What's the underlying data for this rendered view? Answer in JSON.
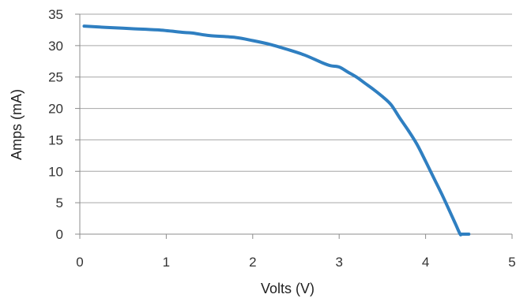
{
  "chart_data": {
    "type": "line",
    "title": "",
    "xlabel": "Volts (V)",
    "ylabel": "Amps (mA)",
    "xlim": [
      0,
      5
    ],
    "ylim": [
      0,
      35
    ],
    "x_ticks": [
      "0",
      "1",
      "2",
      "3",
      "4",
      "5"
    ],
    "y_ticks": [
      "0",
      "5",
      "10",
      "15",
      "20",
      "25",
      "30",
      "35"
    ],
    "grid": "horizontal",
    "legend": "none",
    "colors": {
      "line": "#2f7fc1",
      "grid": "#a6a6a6",
      "axis": "#8c8c8c"
    },
    "series": [
      {
        "x": [
          0.05,
          0.3,
          0.6,
          0.9,
          1.2,
          1.3,
          1.5,
          1.8,
          2.0,
          2.2,
          2.4,
          2.6,
          2.8,
          2.9,
          3.0,
          3.1,
          3.2,
          3.3,
          3.4,
          3.5,
          3.6,
          3.7,
          3.8,
          3.9,
          4.0,
          4.1,
          4.2,
          4.3,
          4.35,
          4.4,
          4.42,
          4.5
        ],
        "y": [
          33.1,
          32.9,
          32.7,
          32.5,
          32.1,
          32.0,
          31.6,
          31.3,
          30.8,
          30.2,
          29.4,
          28.5,
          27.3,
          26.8,
          26.6,
          25.8,
          25.0,
          24.0,
          23.0,
          21.9,
          20.6,
          18.5,
          16.5,
          14.3,
          11.6,
          8.8,
          6.0,
          3.0,
          1.5,
          0.0,
          0.0,
          0.0
        ]
      }
    ]
  }
}
